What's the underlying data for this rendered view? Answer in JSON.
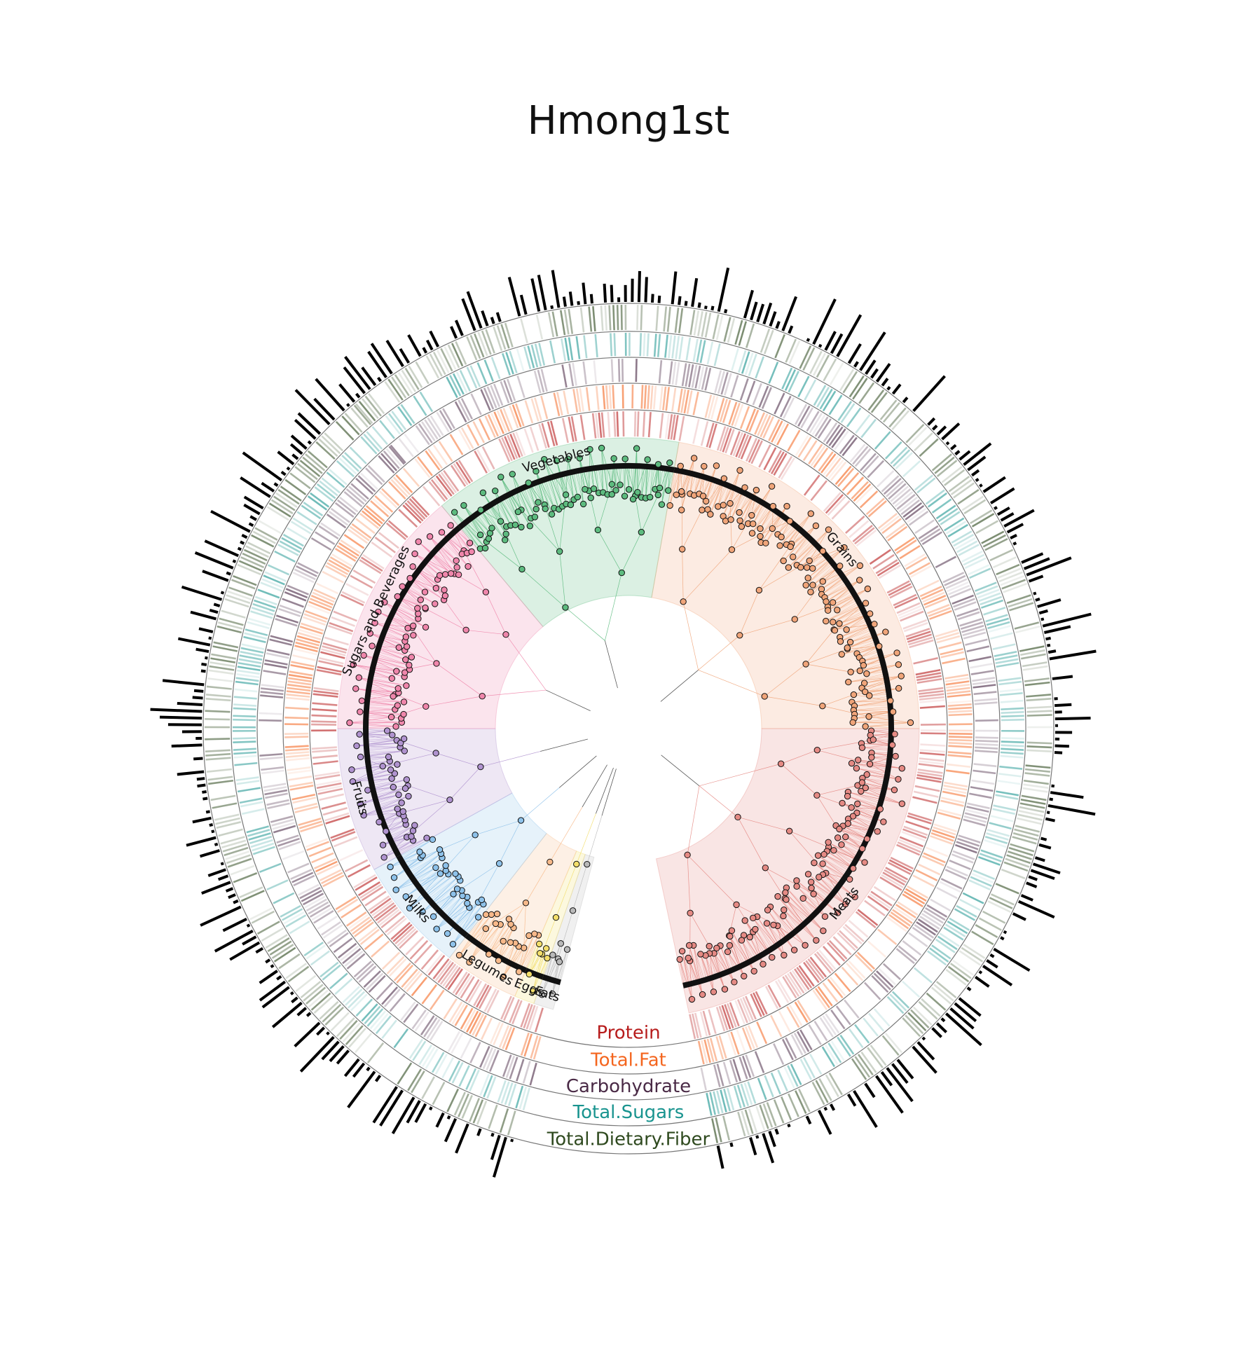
{
  "title": "Hmong1st",
  "chart_data": {
    "type": "circular-tree",
    "categories": [
      {
        "name": "Vegetables",
        "start": -40,
        "end": 10,
        "color": "#5dbb7f"
      },
      {
        "name": "Grains",
        "start": 10,
        "end": 90,
        "color": "#f0a57a"
      },
      {
        "name": "Meats",
        "start": 90,
        "end": 168,
        "color": "#e58a84"
      },
      {
        "name": "Fats",
        "start": 195,
        "end": 199,
        "color": "#b9b9b9"
      },
      {
        "name": "Eggs",
        "start": 199,
        "end": 203,
        "color": "#f3de6a"
      },
      {
        "name": "Legumes",
        "start": 203,
        "end": 218,
        "color": "#f7b98a"
      },
      {
        "name": "Milks",
        "start": 218,
        "end": 241,
        "color": "#8ec2ea"
      },
      {
        "name": "Fruits",
        "start": 241,
        "end": 270,
        "color": "#b093cf"
      },
      {
        "name": "Sugars and Beverages",
        "start": 270,
        "end": 320,
        "color": "#ef86ab"
      }
    ],
    "rings": [
      {
        "name": "Protein",
        "color": "#b71c1c"
      },
      {
        "name": "Total.Fat",
        "color": "#f4651e"
      },
      {
        "name": "Carbohydrate",
        "color": "#4a2a46"
      },
      {
        "name": "Total.Sugars",
        "color": "#19948f"
      },
      {
        "name": "Total.Dietary.Fiber",
        "color": "#2f4a1f"
      }
    ],
    "gap": {
      "start": 168,
      "end": 195
    },
    "outer_bars": "food-level value per leaf"
  }
}
